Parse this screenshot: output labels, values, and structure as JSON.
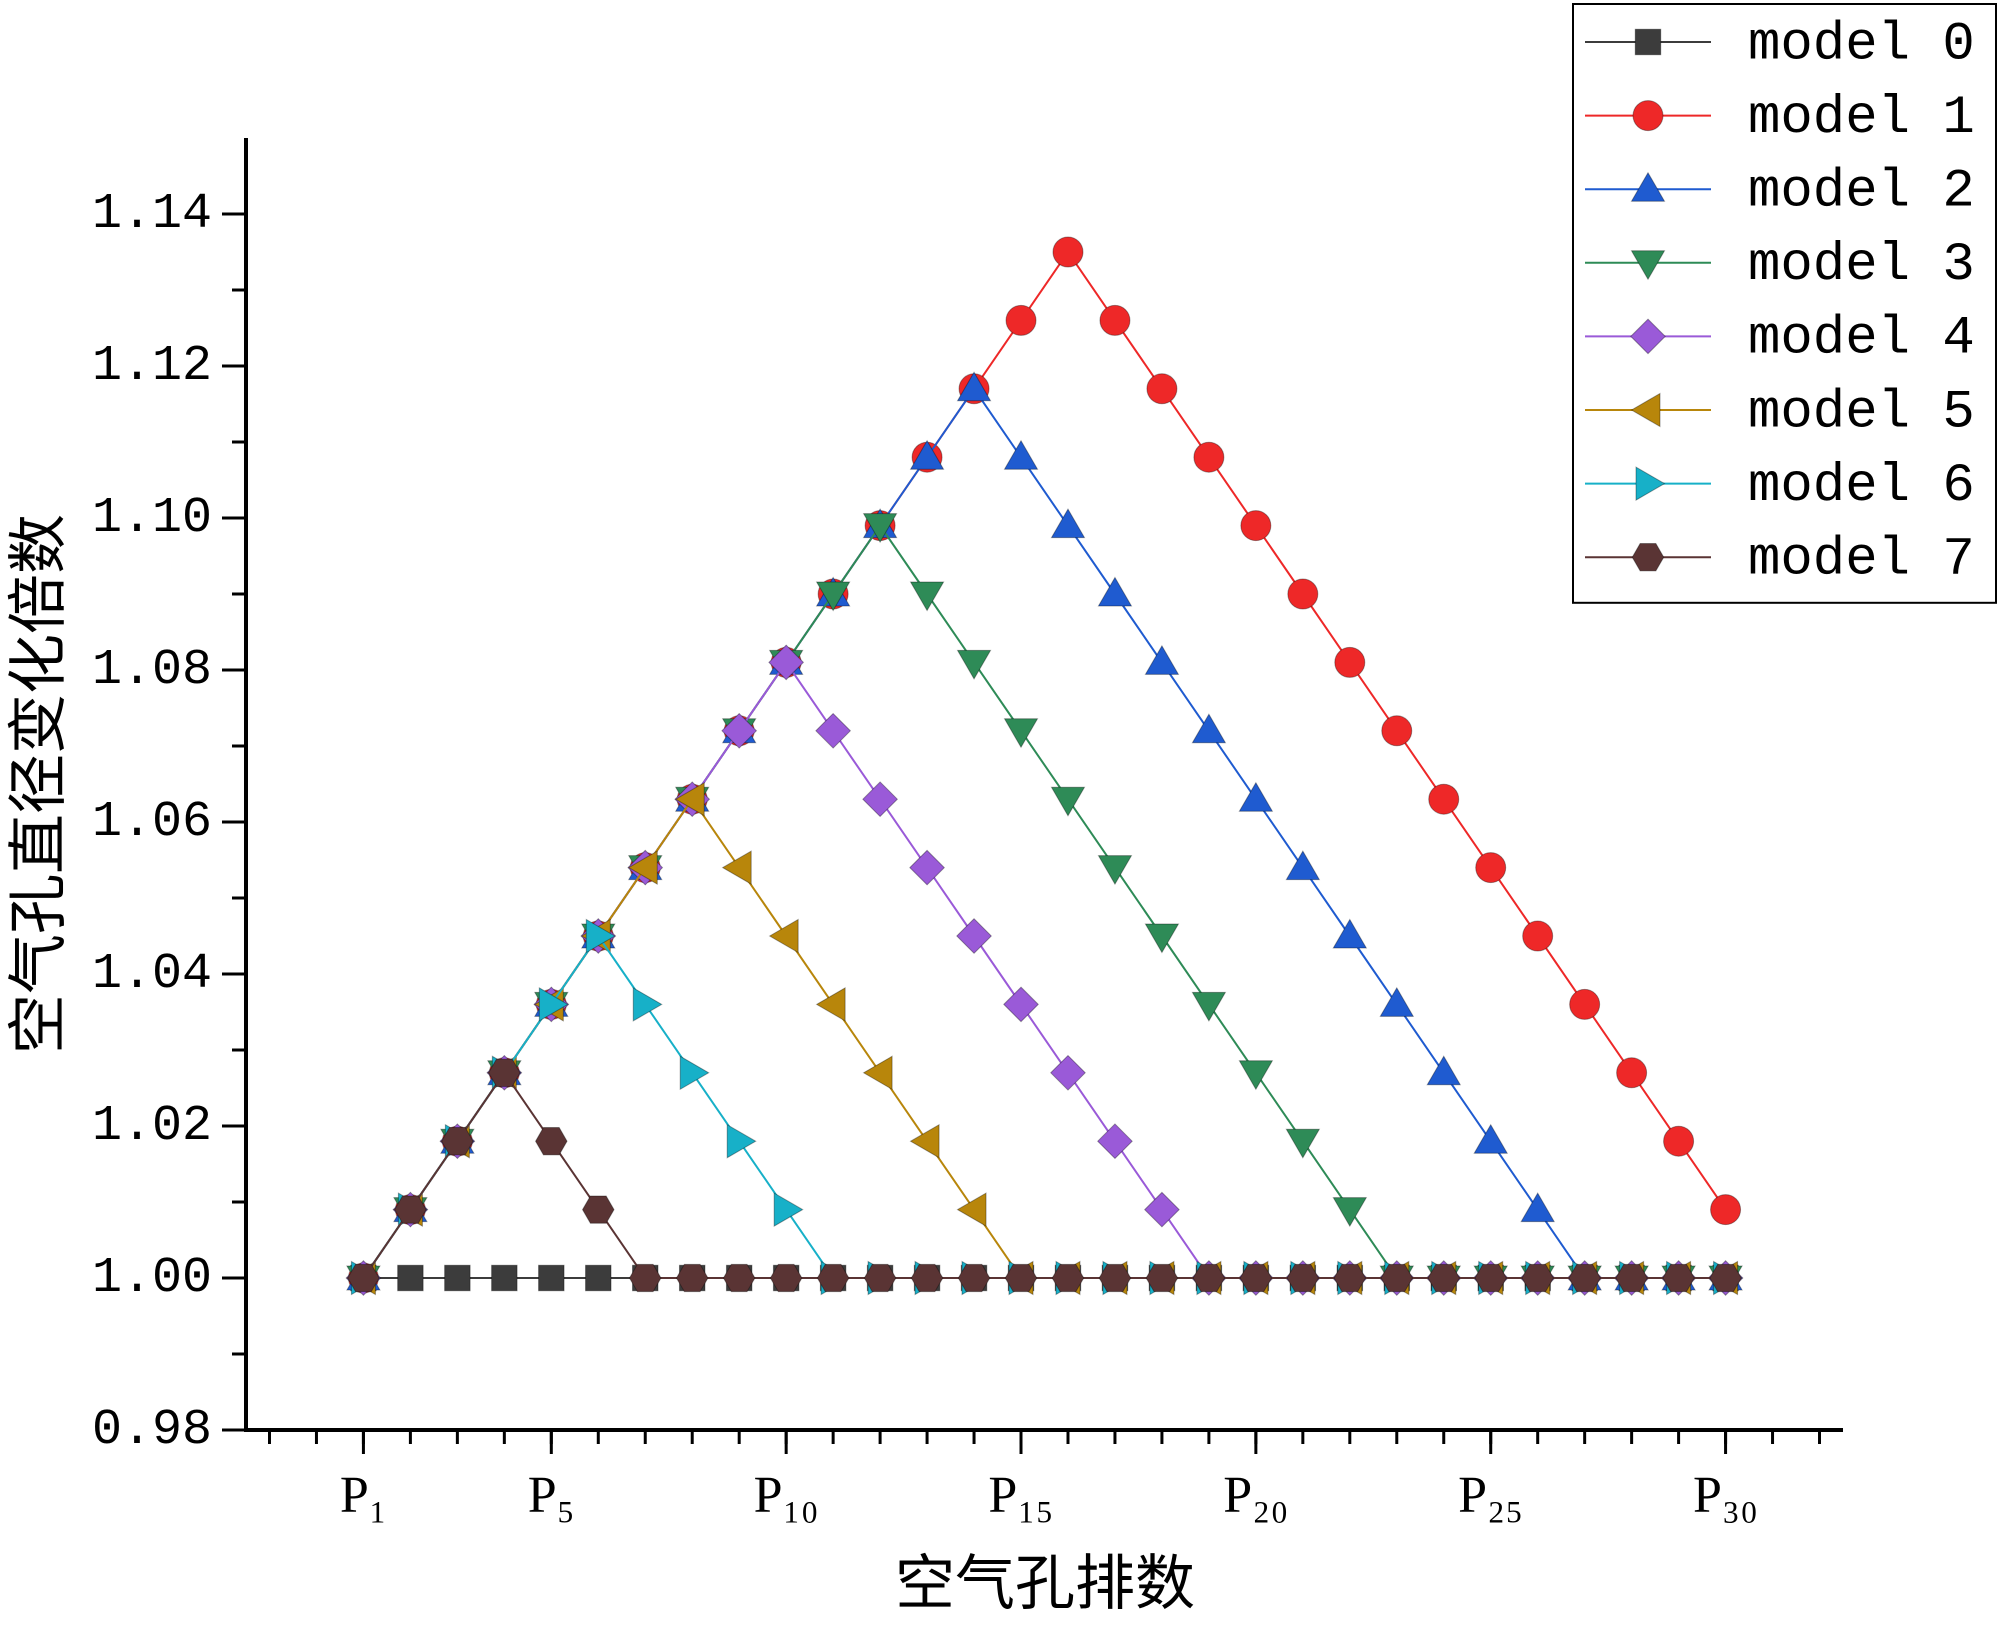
{
  "chart_data": {
    "type": "line",
    "x_label": "空气孔排数",
    "y_label": "空气孔直径变化倍数",
    "x": [
      1,
      2,
      3,
      4,
      5,
      6,
      7,
      8,
      9,
      10,
      11,
      12,
      13,
      14,
      15,
      16,
      17,
      18,
      19,
      20,
      21,
      22,
      23,
      24,
      25,
      26,
      27,
      28,
      29,
      30
    ],
    "xlim": [
      -1.5,
      32.5
    ],
    "xticks": [
      {
        "value": 1,
        "label": "P₁"
      },
      {
        "value": 5,
        "label": "P₅"
      },
      {
        "value": 10,
        "label": "P₁₀"
      },
      {
        "value": 15,
        "label": "P₁₅"
      },
      {
        "value": 20,
        "label": "P₂₀"
      },
      {
        "value": 25,
        "label": "P₂₅"
      },
      {
        "value": 30,
        "label": "P₃₀"
      }
    ],
    "ylim": [
      0.98,
      1.15
    ],
    "yticks": [
      0.98,
      {
        "value": 1,
        "label": "1.00"
      },
      1.02,
      1.04,
      1.06,
      1.08,
      {
        "value": 1.1,
        "label": "1.10"
      },
      1.12,
      1.14
    ],
    "legend": "top-right",
    "series": [
      {
        "name": "model 0",
        "color": "#3c3c3c",
        "marker": "square",
        "values": [
          1,
          1,
          1,
          1,
          1,
          1,
          1,
          1,
          1,
          1,
          1,
          1,
          1,
          1,
          1,
          1,
          1,
          1,
          1,
          1,
          1,
          1,
          1,
          1,
          1,
          1,
          1,
          1,
          1,
          1
        ]
      },
      {
        "name": "model 1",
        "color": "#ee2828",
        "marker": "circle",
        "values": [
          1,
          1.009,
          1.018,
          1.027,
          1.036,
          1.045,
          1.054,
          1.063,
          1.072,
          1.081,
          1.09,
          1.099,
          1.108,
          1.117,
          1.126,
          1.135,
          1.126,
          1.117,
          1.108,
          1.099,
          1.09,
          1.081,
          1.072,
          1.063,
          1.054,
          1.045,
          1.036,
          1.027,
          1.018,
          1.009
        ]
      },
      {
        "name": "model 2",
        "color": "#1f5bd0",
        "marker": "triangle-up",
        "values": [
          1,
          1.009,
          1.018,
          1.027,
          1.036,
          1.045,
          1.054,
          1.063,
          1.072,
          1.081,
          1.09,
          1.099,
          1.108,
          1.117,
          1.108,
          1.099,
          1.09,
          1.081,
          1.072,
          1.063,
          1.054,
          1.045,
          1.036,
          1.027,
          1.018,
          1.009,
          1,
          1,
          1,
          1
        ]
      },
      {
        "name": "model 3",
        "color": "#2e8b57",
        "marker": "triangle-down",
        "values": [
          1,
          1.009,
          1.018,
          1.027,
          1.036,
          1.045,
          1.054,
          1.063,
          1.072,
          1.081,
          1.09,
          1.099,
          1.09,
          1.081,
          1.072,
          1.063,
          1.054,
          1.045,
          1.036,
          1.027,
          1.018,
          1.009,
          1,
          1,
          1,
          1,
          1,
          1,
          1,
          1
        ]
      },
      {
        "name": "model 4",
        "color": "#9a5ad8",
        "marker": "diamond",
        "values": [
          1,
          1.009,
          1.018,
          1.027,
          1.036,
          1.045,
          1.054,
          1.063,
          1.072,
          1.081,
          1.072,
          1.063,
          1.054,
          1.045,
          1.036,
          1.027,
          1.018,
          1.009,
          1,
          1,
          1,
          1,
          1,
          1,
          1,
          1,
          1,
          1,
          1,
          1
        ]
      },
      {
        "name": "model 5",
        "color": "#b8860b",
        "marker": "triangle-left",
        "values": [
          1,
          1.009,
          1.018,
          1.027,
          1.036,
          1.045,
          1.054,
          1.063,
          1.054,
          1.045,
          1.036,
          1.027,
          1.018,
          1.009,
          1,
          1,
          1,
          1,
          1,
          1,
          1,
          1,
          1,
          1,
          1,
          1,
          1,
          1,
          1,
          1
        ]
      },
      {
        "name": "model 6",
        "color": "#17b0c8",
        "marker": "triangle-right",
        "values": [
          1,
          1.009,
          1.018,
          1.027,
          1.036,
          1.045,
          1.036,
          1.027,
          1.018,
          1.009,
          1,
          1,
          1,
          1,
          1,
          1,
          1,
          1,
          1,
          1,
          1,
          1,
          1,
          1,
          1,
          1,
          1,
          1,
          1,
          1
        ]
      },
      {
        "name": "model 7",
        "color": "#5a3434",
        "marker": "hexagon",
        "values": [
          1,
          1.009,
          1.018,
          1.027,
          1.018,
          1.009,
          1,
          1,
          1,
          1,
          1,
          1,
          1,
          1,
          1,
          1,
          1,
          1,
          1,
          1,
          1,
          1,
          1,
          1,
          1,
          1,
          1,
          1,
          1,
          1
        ]
      }
    ]
  }
}
